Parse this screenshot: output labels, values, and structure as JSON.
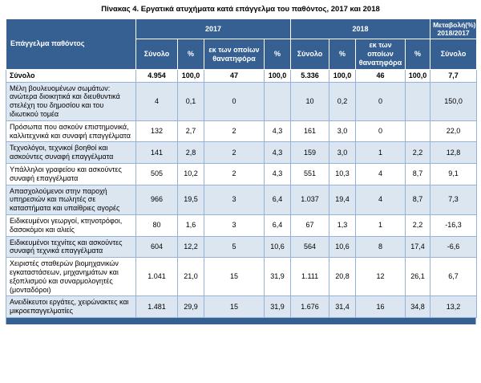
{
  "title": "Πίνακας 4. Εργατικά ατυχήματα κατά επάγγελμα του παθόντος, 2017 και 2018",
  "table": {
    "occupation_header": "Επάγγελμα παθόντος",
    "year_groups": [
      "2017",
      "2018"
    ],
    "change_header": "Μεταβολή(%) 2018/2017",
    "subheaders": [
      "Σύνολο",
      "%",
      "εκ των οποίων θανατηφόρα",
      "%",
      "Σύνολο",
      "%",
      "εκ των οποίων θανατηφόρα",
      "%",
      "Σύνολο"
    ],
    "rows": [
      {
        "label": "Σύνολο",
        "bold": true,
        "values": [
          "4.954",
          "100,0",
          "47",
          "100,0",
          "5.336",
          "100,0",
          "46",
          "100,0",
          "7,7"
        ]
      },
      {
        "label": "Μέλη βουλευομένων σωμάτων: ανώτερα διοικητικά και διευθυντικά στελέχη του δημοσίου και του ιδιωτικού τομέα",
        "bold": false,
        "values": [
          "4",
          "0,1",
          "0",
          "",
          "10",
          "0,2",
          "0",
          "",
          "150,0"
        ]
      },
      {
        "label": "Πρόσωπα που ασκούν επιστημονικά, καλλιτεχνικά και συναφή επαγγέλματα",
        "bold": false,
        "values": [
          "132",
          "2,7",
          "2",
          "4,3",
          "161",
          "3,0",
          "0",
          "",
          "22,0"
        ]
      },
      {
        "label": "Τεχνολόγοι, τεχνικοί βοηθοί και ασκούντες συναφή επαγγέλματα",
        "bold": false,
        "values": [
          "141",
          "2,8",
          "2",
          "4,3",
          "159",
          "3,0",
          "1",
          "2,2",
          "12,8"
        ]
      },
      {
        "label": "Υπάλληλοι γραφείου και ασκούντες συναφή επαγγέλματα",
        "bold": false,
        "values": [
          "505",
          "10,2",
          "2",
          "4,3",
          "551",
          "10,3",
          "4",
          "8,7",
          "9,1"
        ]
      },
      {
        "label": "Απασχολούμενοι στην παροχή υπηρεσιών και πωλητές σε καταστήματα και υπαίθριες αγορές",
        "bold": false,
        "values": [
          "966",
          "19,5",
          "3",
          "6,4",
          "1.037",
          "19,4",
          "4",
          "8,7",
          "7,3"
        ]
      },
      {
        "label": "Ειδικευμένοι γεωργοί, κτηνοτρόφοι, δασοκόμοι και αλιείς",
        "bold": false,
        "values": [
          "80",
          "1,6",
          "3",
          "6,4",
          "67",
          "1,3",
          "1",
          "2,2",
          "-16,3"
        ]
      },
      {
        "label": "Ειδικευμένοι τεχνίτες και ασκούντες συναφή τεχνικά επαγγέλματα",
        "bold": false,
        "values": [
          "604",
          "12,2",
          "5",
          "10,6",
          "564",
          "10,6",
          "8",
          "17,4",
          "-6,6"
        ]
      },
      {
        "label": "Χειριστές σταθερών βιομηχανικών εγκαταστάσεων, μηχανημάτων και εξοπλισμού και συναρμολογητές (μονταδόροι)",
        "bold": false,
        "values": [
          "1.041",
          "21,0",
          "15",
          "31,9",
          "1.111",
          "20,8",
          "12",
          "26,1",
          "6,7"
        ]
      },
      {
        "label": "Ανειδίκευτοι εργάτες, χειρώνακτες και μικροεπαγγελματίες",
        "bold": false,
        "values": [
          "1.481",
          "29,9",
          "15",
          "31,9",
          "1.676",
          "31,4",
          "16",
          "34,8",
          "13,2"
        ]
      }
    ]
  },
  "colors": {
    "header_bg": "#376092",
    "row_alt_bg": "#DCE6F1",
    "border": "#95B3D7"
  }
}
